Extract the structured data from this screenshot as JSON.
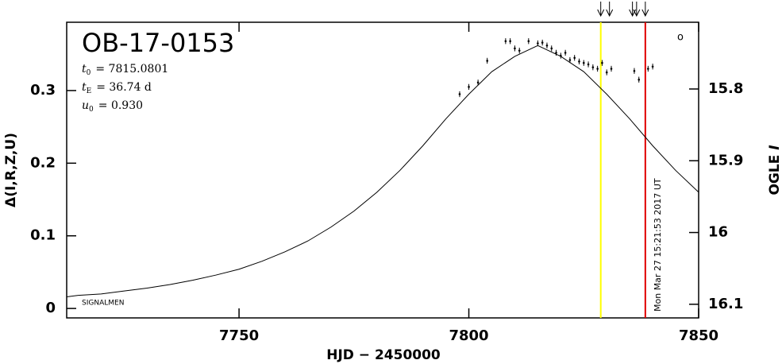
{
  "chart_data": {
    "type": "scatter",
    "title": "OB-17-0153",
    "parameters": [
      {
        "symbol": "t",
        "subscript": "0",
        "text": "= 7815.0801"
      },
      {
        "symbol": "t",
        "subscript": "E",
        "text": "= 36.74 d"
      },
      {
        "symbol": "u",
        "subscript": "0",
        "text": "= 0.930"
      }
    ],
    "x_label": "HJD − 2450000",
    "y_label": "Δ(I,R,Z,U)",
    "y2_label_prefix": "OGLE",
    "y2_label_band": "I",
    "observatory_label": "SIGNALMEN",
    "symbol": "o",
    "timestamp": "Mon Mar 27 15:21:53 2017 UT",
    "xlim": [
      7712.5,
      7850
    ],
    "xticks": [
      7750,
      7800,
      7850
    ],
    "ylim": [
      -0.013,
      0.394
    ],
    "yticks": [
      0,
      0.1,
      0.2,
      0.3
    ],
    "y2lim": [
      16.119,
      15.707
    ],
    "y2ticks": [
      15.8,
      15.9,
      16,
      16.1
    ],
    "model": {
      "color": "#000000",
      "x": [
        7712.5,
        7715,
        7720,
        7725,
        7730,
        7735,
        7740,
        7745,
        7750,
        7755,
        7760,
        7765,
        7770,
        7775,
        7780,
        7785,
        7790,
        7795,
        7800,
        7805,
        7810,
        7815,
        7820,
        7825,
        7830,
        7835,
        7840,
        7845,
        7850
      ],
      "values": [
        0.016,
        0.018,
        0.02,
        0.024,
        0.028,
        0.033,
        0.039,
        0.046,
        0.054,
        0.065,
        0.078,
        0.093,
        0.112,
        0.134,
        0.16,
        0.19,
        0.224,
        0.261,
        0.295,
        0.326,
        0.347,
        0.362,
        0.347,
        0.326,
        0.295,
        0.261,
        0.224,
        0.19,
        0.16
      ]
    },
    "points": {
      "color": "#000000",
      "x": [
        7798,
        7800,
        7802,
        7804,
        7808,
        7809,
        7810,
        7811,
        7813,
        7815,
        7816,
        7817,
        7818,
        7819,
        7820,
        7821,
        7822,
        7823,
        7824,
        7825,
        7826,
        7827,
        7828,
        7829,
        7830,
        7831,
        7836,
        7837,
        7839,
        7840
      ],
      "values": [
        0.295,
        0.305,
        0.311,
        0.341,
        0.368,
        0.368,
        0.358,
        0.355,
        0.368,
        0.365,
        0.366,
        0.362,
        0.358,
        0.352,
        0.348,
        0.352,
        0.342,
        0.345,
        0.34,
        0.338,
        0.336,
        0.332,
        0.33,
        0.338,
        0.325,
        0.33,
        0.327,
        0.315,
        0.33,
        0.333
      ],
      "errors": [
        0.004,
        0.004,
        0.004,
        0.004,
        0.004,
        0.004,
        0.004,
        0.004,
        0.004,
        0.004,
        0.004,
        0.004,
        0.004,
        0.004,
        0.004,
        0.004,
        0.004,
        0.004,
        0.004,
        0.004,
        0.004,
        0.004,
        0.004,
        0.004,
        0.004,
        0.004,
        0.004,
        0.004,
        0.004,
        0.004
      ]
    },
    "vlines": [
      {
        "x": 7828.7,
        "color": "#ffff00"
      },
      {
        "x": 7838.4,
        "color": "#e00000"
      }
    ],
    "arrows_x": [
      7828.7,
      7830.6,
      7835.6,
      7836.5,
      7838.4
    ]
  }
}
